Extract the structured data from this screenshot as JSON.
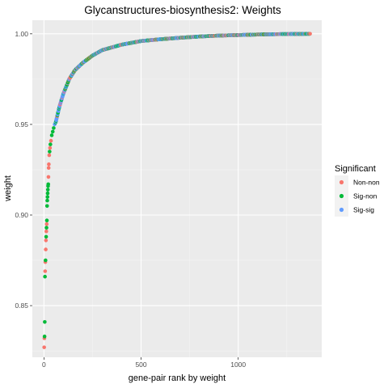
{
  "chart_data": {
    "type": "scatter",
    "title": "Glycanstructures-biosynthesis2: Weights",
    "xlabel": "gene-pair rank by weight",
    "ylabel": "weight",
    "xlim": [
      -60,
      1430
    ],
    "ylim": [
      0.8215,
      1.0075
    ],
    "x_ticks": [
      0,
      500,
      1000
    ],
    "x_tick_labels": [
      "0",
      "500",
      "1000"
    ],
    "y_ticks": [
      0.85,
      0.9,
      0.95,
      1.0
    ],
    "y_tick_labels": [
      "0.85",
      "0.90",
      "0.95",
      "1.00"
    ],
    "grid": true,
    "n_points": 1370,
    "legend": {
      "title": "Significant",
      "placement": "right",
      "entries": [
        {
          "name": "Non-non",
          "color": "#F8766D"
        },
        {
          "name": "Sig-non",
          "color": "#00BA38"
        },
        {
          "name": "Sig-sig",
          "color": "#619CFF"
        }
      ]
    },
    "series": [
      {
        "name": "Non-non",
        "color": "#F8766D"
      },
      {
        "name": "Sig-non",
        "color": "#00BA38"
      },
      {
        "name": "Sig-sig",
        "color": "#619CFF"
      }
    ],
    "head_points": [
      {
        "x": 1,
        "y": 0.827,
        "series": "Non-non"
      },
      {
        "x": 2,
        "y": 0.832,
        "series": "Non-non"
      },
      {
        "x": 3,
        "y": 0.833,
        "series": "Sig-non"
      },
      {
        "x": 4,
        "y": 0.841,
        "series": "Sig-non"
      },
      {
        "x": 5,
        "y": 0.866,
        "series": "Sig-non"
      },
      {
        "x": 6,
        "y": 0.869,
        "series": "Non-non"
      },
      {
        "x": 7,
        "y": 0.874,
        "series": "Non-non"
      },
      {
        "x": 8,
        "y": 0.875,
        "series": "Sig-non"
      },
      {
        "x": 9,
        "y": 0.881,
        "series": "Non-non"
      },
      {
        "x": 10,
        "y": 0.886,
        "series": "Non-non"
      },
      {
        "x": 11,
        "y": 0.888,
        "series": "Sig-non"
      },
      {
        "x": 12,
        "y": 0.891,
        "series": "Non-non"
      },
      {
        "x": 13,
        "y": 0.893,
        "series": "Sig-non"
      },
      {
        "x": 14,
        "y": 0.895,
        "series": "Non-non"
      },
      {
        "x": 15,
        "y": 0.897,
        "series": "Sig-non"
      },
      {
        "x": 16,
        "y": 0.905,
        "series": "Sig-non"
      },
      {
        "x": 17,
        "y": 0.908,
        "series": "Sig-non"
      },
      {
        "x": 18,
        "y": 0.91,
        "series": "Sig-non"
      },
      {
        "x": 19,
        "y": 0.912,
        "series": "Sig-non"
      },
      {
        "x": 20,
        "y": 0.914,
        "series": "Sig-non"
      },
      {
        "x": 21,
        "y": 0.916,
        "series": "Sig-non"
      },
      {
        "x": 22,
        "y": 0.917,
        "series": "Sig-non"
      },
      {
        "x": 23,
        "y": 0.921,
        "series": "Non-non"
      },
      {
        "x": 24,
        "y": 0.926,
        "series": "Non-non"
      },
      {
        "x": 25,
        "y": 0.928,
        "series": "Non-non"
      },
      {
        "x": 27,
        "y": 0.933,
        "series": "Non-non"
      },
      {
        "x": 29,
        "y": 0.935,
        "series": "Sig-non"
      },
      {
        "x": 31,
        "y": 0.937,
        "series": "Non-non"
      },
      {
        "x": 33,
        "y": 0.939,
        "series": "Sig-non"
      },
      {
        "x": 36,
        "y": 0.941,
        "series": "Non-non"
      },
      {
        "x": 40,
        "y": 0.944,
        "series": "Sig-non"
      },
      {
        "x": 45,
        "y": 0.946,
        "series": "Sig-non"
      },
      {
        "x": 50,
        "y": 0.948,
        "series": "Sig-non"
      },
      {
        "x": 55,
        "y": 0.95,
        "series": "Sig-sig"
      },
      {
        "x": 60,
        "y": 0.951,
        "series": "Sig-non"
      }
    ],
    "curve": [
      {
        "x": 60,
        "y": 0.951
      },
      {
        "x": 80,
        "y": 0.96
      },
      {
        "x": 100,
        "y": 0.967
      },
      {
        "x": 130,
        "y": 0.975
      },
      {
        "x": 160,
        "y": 0.98
      },
      {
        "x": 200,
        "y": 0.984
      },
      {
        "x": 250,
        "y": 0.988
      },
      {
        "x": 300,
        "y": 0.991
      },
      {
        "x": 400,
        "y": 0.994
      },
      {
        "x": 500,
        "y": 0.996
      },
      {
        "x": 600,
        "y": 0.997
      },
      {
        "x": 700,
        "y": 0.9978
      },
      {
        "x": 800,
        "y": 0.9985
      },
      {
        "x": 900,
        "y": 0.999
      },
      {
        "x": 1000,
        "y": 0.9993
      },
      {
        "x": 1100,
        "y": 0.9996
      },
      {
        "x": 1200,
        "y": 0.9998
      },
      {
        "x": 1300,
        "y": 0.9999
      },
      {
        "x": 1370,
        "y": 1.0
      }
    ]
  }
}
